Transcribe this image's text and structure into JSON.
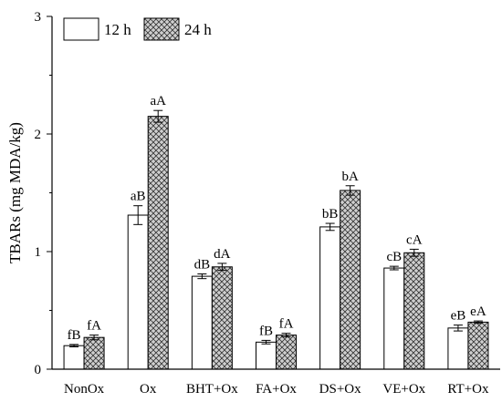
{
  "chart_data": {
    "type": "bar",
    "ylabel": "TBARs (mg MDA/kg)",
    "xlabel": "",
    "ylim": [
      0,
      3
    ],
    "yticks": [
      0,
      1,
      2,
      3
    ],
    "categories": [
      "NonOx",
      "Ox",
      "BHT+Ox",
      "FA+Ox",
      "DS+Ox",
      "VE+Ox",
      "RT+Ox"
    ],
    "legend_position": "top-left",
    "series": [
      {
        "name": "12 h",
        "fill": "white",
        "values": [
          0.2,
          1.31,
          0.79,
          0.23,
          1.21,
          0.86,
          0.35
        ],
        "errors": [
          0.01,
          0.08,
          0.02,
          0.015,
          0.03,
          0.015,
          0.025
        ],
        "labels": [
          "fB",
          "aB",
          "dB",
          "fB",
          "bB",
          "cB",
          "eB"
        ]
      },
      {
        "name": "24 h",
        "fill": "crosshatch",
        "values": [
          0.27,
          2.15,
          0.87,
          0.29,
          1.52,
          0.99,
          0.4
        ],
        "errors": [
          0.02,
          0.05,
          0.03,
          0.015,
          0.04,
          0.03,
          0.01
        ],
        "labels": [
          "fA",
          "aA",
          "dA",
          "fA",
          "bA",
          "cA",
          "eA"
        ]
      }
    ]
  },
  "colors": {
    "bar_stroke": "#000000",
    "hatch": "#333333",
    "hatch_bg": "#cfcfcf",
    "axis": "#000000"
  }
}
